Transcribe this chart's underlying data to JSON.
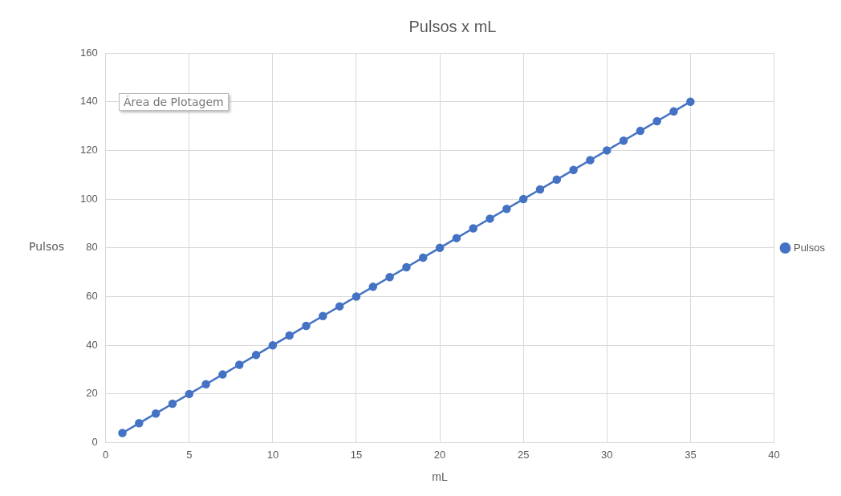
{
  "chart_data": {
    "type": "line",
    "title": "Pulsos x mL",
    "xlabel": "mL",
    "ylabel": "Pulsos",
    "x": [
      1,
      2,
      3,
      4,
      5,
      6,
      7,
      8,
      9,
      10,
      11,
      12,
      13,
      14,
      15,
      16,
      17,
      18,
      19,
      20,
      21,
      22,
      23,
      24,
      25,
      26,
      27,
      28,
      29,
      30,
      31,
      32,
      33,
      34,
      35
    ],
    "series": [
      {
        "name": "Pulsos",
        "color": "#4472c4",
        "values": [
          4,
          8,
          12,
          16,
          20,
          24,
          28,
          32,
          36,
          40,
          44,
          48,
          52,
          56,
          60,
          64,
          68,
          72,
          76,
          80,
          84,
          88,
          92,
          96,
          100,
          104,
          108,
          112,
          116,
          120,
          124,
          128,
          132,
          136,
          140
        ]
      }
    ],
    "xlim": [
      0,
      40
    ],
    "xticks": [
      0,
      5,
      10,
      15,
      20,
      25,
      30,
      35,
      40
    ],
    "ylim": [
      0,
      160
    ],
    "yticks": [
      0,
      20,
      40,
      60,
      80,
      100,
      120,
      140,
      160
    ],
    "grid": true,
    "legend": "right",
    "marker": "circle",
    "line_style": "solid",
    "annotations": [
      "Área de Plotagem"
    ]
  }
}
